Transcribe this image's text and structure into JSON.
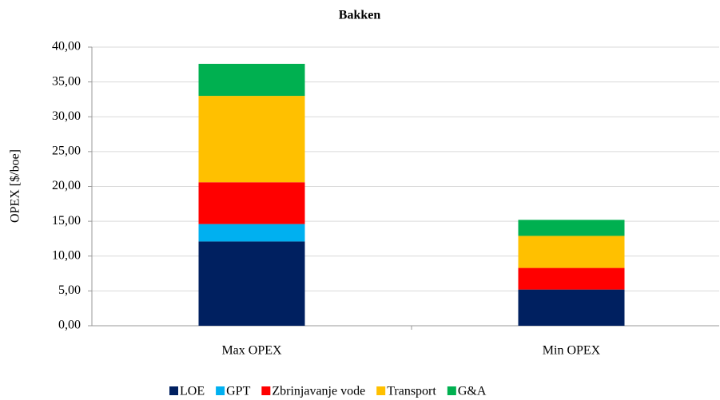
{
  "chart_data": {
    "type": "stacked_bar",
    "title": "Bakken",
    "y_label": "OPEX [$/boe]",
    "categories": [
      "Max OPEX",
      "Min OPEX"
    ],
    "series": [
      {
        "name": "LOE",
        "color": "#002060",
        "values": [
          12.1,
          5.2
        ]
      },
      {
        "name": "GPT",
        "color": "#00b0f0",
        "values": [
          2.5,
          0
        ]
      },
      {
        "name": "Zbrinjavanje vode",
        "color": "#ff0000",
        "values": [
          6.0,
          3.1
        ]
      },
      {
        "name": "Transport",
        "color": "#ffc000",
        "values": [
          12.4,
          4.6
        ]
      },
      {
        "name": "G&A",
        "color": "#00b050",
        "values": [
          4.6,
          2.3
        ]
      }
    ],
    "ylim": [
      0,
      40
    ],
    "yticks": [
      {
        "value": 0,
        "label": "0,00"
      },
      {
        "value": 5,
        "label": "5,00"
      },
      {
        "value": 10,
        "label": "10,00"
      },
      {
        "value": 15,
        "label": "15,00"
      },
      {
        "value": 20,
        "label": "20,00"
      },
      {
        "value": 25,
        "label": "25,00"
      },
      {
        "value": 30,
        "label": "30,00"
      },
      {
        "value": 35,
        "label": "35,00"
      },
      {
        "value": 40,
        "label": "40,00"
      }
    ],
    "grid": true,
    "legend": "bottom"
  }
}
